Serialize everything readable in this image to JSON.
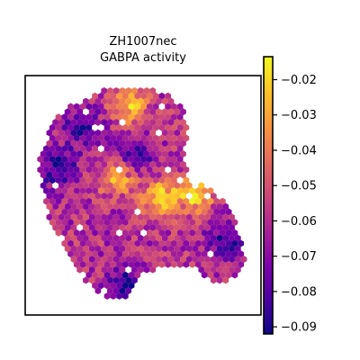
{
  "chart_data": {
    "type": "heatmap",
    "subtype": "hexbin spatial map",
    "title_lines": [
      "ZH1007nec",
      "GABPA activity"
    ],
    "xlabel": "",
    "ylabel": "",
    "axes_ticks": "none",
    "grid": false,
    "colormap": "plasma",
    "colorbar": {
      "position": "right",
      "vmin": -0.092,
      "vmax": -0.0135,
      "ticks": [
        -0.02,
        -0.03,
        -0.04,
        -0.05,
        -0.06,
        -0.07,
        -0.08,
        -0.09
      ],
      "tick_labels": [
        "−0.02",
        "−0.03",
        "−0.04",
        "−0.05",
        "−0.06",
        "−0.07",
        "−0.08",
        "−0.09"
      ]
    },
    "value_range_observed": [
      -0.092,
      -0.015
    ],
    "value_mode_observed": -0.06,
    "hotspots": [
      {
        "area": "upper-center",
        "value": -0.025
      },
      {
        "area": "center-left",
        "value": -0.028
      },
      {
        "area": "center-right",
        "value": -0.02
      },
      {
        "area": "right",
        "value": -0.015
      }
    ],
    "coldspots": [
      {
        "area": "upper-left",
        "value": -0.088
      },
      {
        "area": "left",
        "value": -0.09
      },
      {
        "area": "center",
        "value": -0.085
      },
      {
        "area": "lower-right",
        "value": -0.088
      },
      {
        "area": "bottom",
        "value": -0.09
      }
    ]
  }
}
